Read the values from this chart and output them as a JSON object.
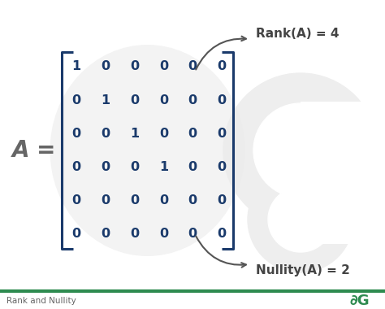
{
  "background_color": "#ffffff",
  "matrix": [
    [
      1,
      0,
      0,
      0,
      0,
      0
    ],
    [
      0,
      1,
      0,
      0,
      0,
      0
    ],
    [
      0,
      0,
      1,
      0,
      0,
      0
    ],
    [
      0,
      0,
      0,
      1,
      0,
      0
    ],
    [
      0,
      0,
      0,
      0,
      0,
      0
    ],
    [
      0,
      0,
      0,
      0,
      0,
      0
    ]
  ],
  "matrix_color": "#1a3a6b",
  "label_A": "A =",
  "label_A_color": "#666666",
  "rank_label": "Rank(A) = 4",
  "nullity_label": "Nullity(A) = 2",
  "annotation_color": "#444444",
  "arrow_color": "#555555",
  "footer_text": "Rank and Nullity",
  "footer_color": "#666666",
  "bracket_color": "#1a3a6b",
  "watermark_color": "#eeeeee",
  "bottom_line_color": "#2e8b50",
  "logo_color": "#2e8b50"
}
